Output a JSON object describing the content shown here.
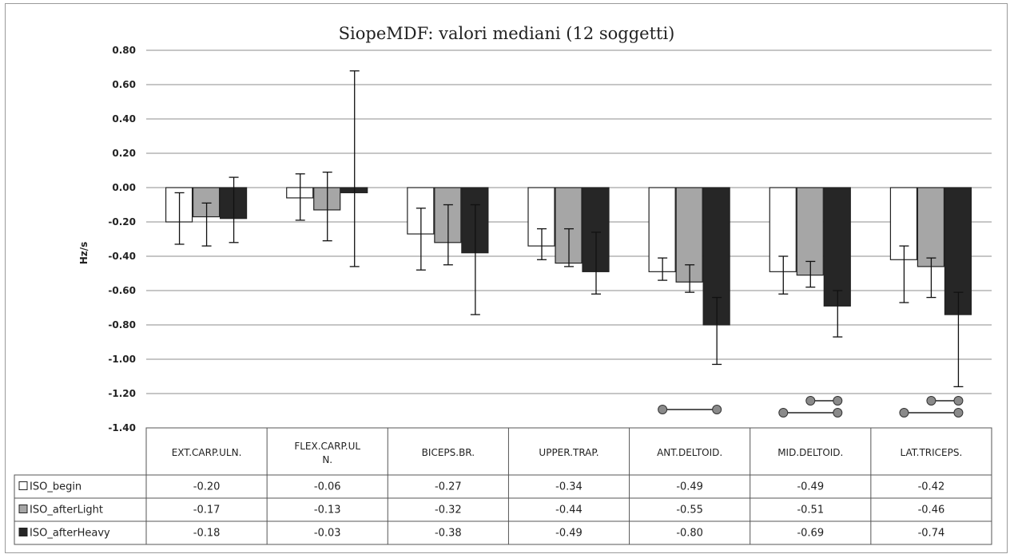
{
  "chart_data": {
    "type": "bar",
    "title": "SiopeMDF: valori mediani (12 soggetti)",
    "ylabel": "Hz/s",
    "ylim": [
      -1.4,
      0.8
    ],
    "yticks": [
      "0.80",
      "0.60",
      "0.40",
      "0.20",
      "0.00",
      "-0.20",
      "-0.40",
      "-0.60",
      "-0.80",
      "-1.00",
      "-1.20",
      "-1.40"
    ],
    "grid": true,
    "legend": "data-table",
    "categories": [
      "EXT.CARP.ULN.",
      "FLEX.CARP.UL N.",
      "BICEPS.BR.",
      "UPPER.TRAP.",
      "ANT.DELTOID.",
      "MID.DELTOID.",
      "LAT.TRICEPS."
    ],
    "series": [
      {
        "name": "ISO_begin",
        "color": "#ffffff",
        "values": [
          -0.2,
          -0.06,
          -0.27,
          -0.34,
          -0.49,
          -0.49,
          -0.42
        ],
        "labels": [
          "-0.20",
          "-0.06",
          "-0.27",
          "-0.34",
          "-0.49",
          "-0.49",
          "-0.42"
        ],
        "err_low": [
          -0.33,
          -0.19,
          -0.48,
          -0.42,
          -0.54,
          -0.62,
          -0.67
        ],
        "err_high": [
          -0.03,
          0.08,
          -0.12,
          -0.24,
          -0.41,
          -0.4,
          -0.34
        ]
      },
      {
        "name": "ISO_afterLight",
        "color": "#a6a6a6",
        "values": [
          -0.17,
          -0.13,
          -0.32,
          -0.44,
          -0.55,
          -0.51,
          -0.46
        ],
        "labels": [
          "-0.17",
          "-0.13",
          "-0.32",
          "-0.44",
          "-0.55",
          "-0.51",
          "-0.46"
        ],
        "err_low": [
          -0.34,
          -0.31,
          -0.45,
          -0.46,
          -0.61,
          -0.58,
          -0.64
        ],
        "err_high": [
          -0.09,
          0.09,
          -0.1,
          -0.24,
          -0.45,
          -0.43,
          -0.41
        ]
      },
      {
        "name": "ISO_afterHeavy",
        "color": "#262626",
        "values": [
          -0.18,
          -0.03,
          -0.38,
          -0.49,
          -0.8,
          -0.69,
          -0.74
        ],
        "labels": [
          "-0.18",
          "-0.03",
          "-0.38",
          "-0.49",
          "-0.80",
          "-0.69",
          "-0.74"
        ],
        "err_low": [
          -0.32,
          -0.46,
          -0.74,
          -0.62,
          -1.03,
          -0.87,
          -1.16
        ],
        "err_high": [
          0.06,
          0.68,
          -0.1,
          -0.26,
          -0.64,
          -0.6,
          -0.61
        ]
      }
    ],
    "significance": [
      {
        "category": 4,
        "pairs": [
          [
            0,
            2
          ]
        ]
      },
      {
        "category": 5,
        "pairs": [
          [
            1,
            2
          ],
          [
            0,
            2
          ]
        ]
      },
      {
        "category": 6,
        "pairs": [
          [
            1,
            2
          ],
          [
            0,
            2
          ]
        ]
      }
    ]
  }
}
